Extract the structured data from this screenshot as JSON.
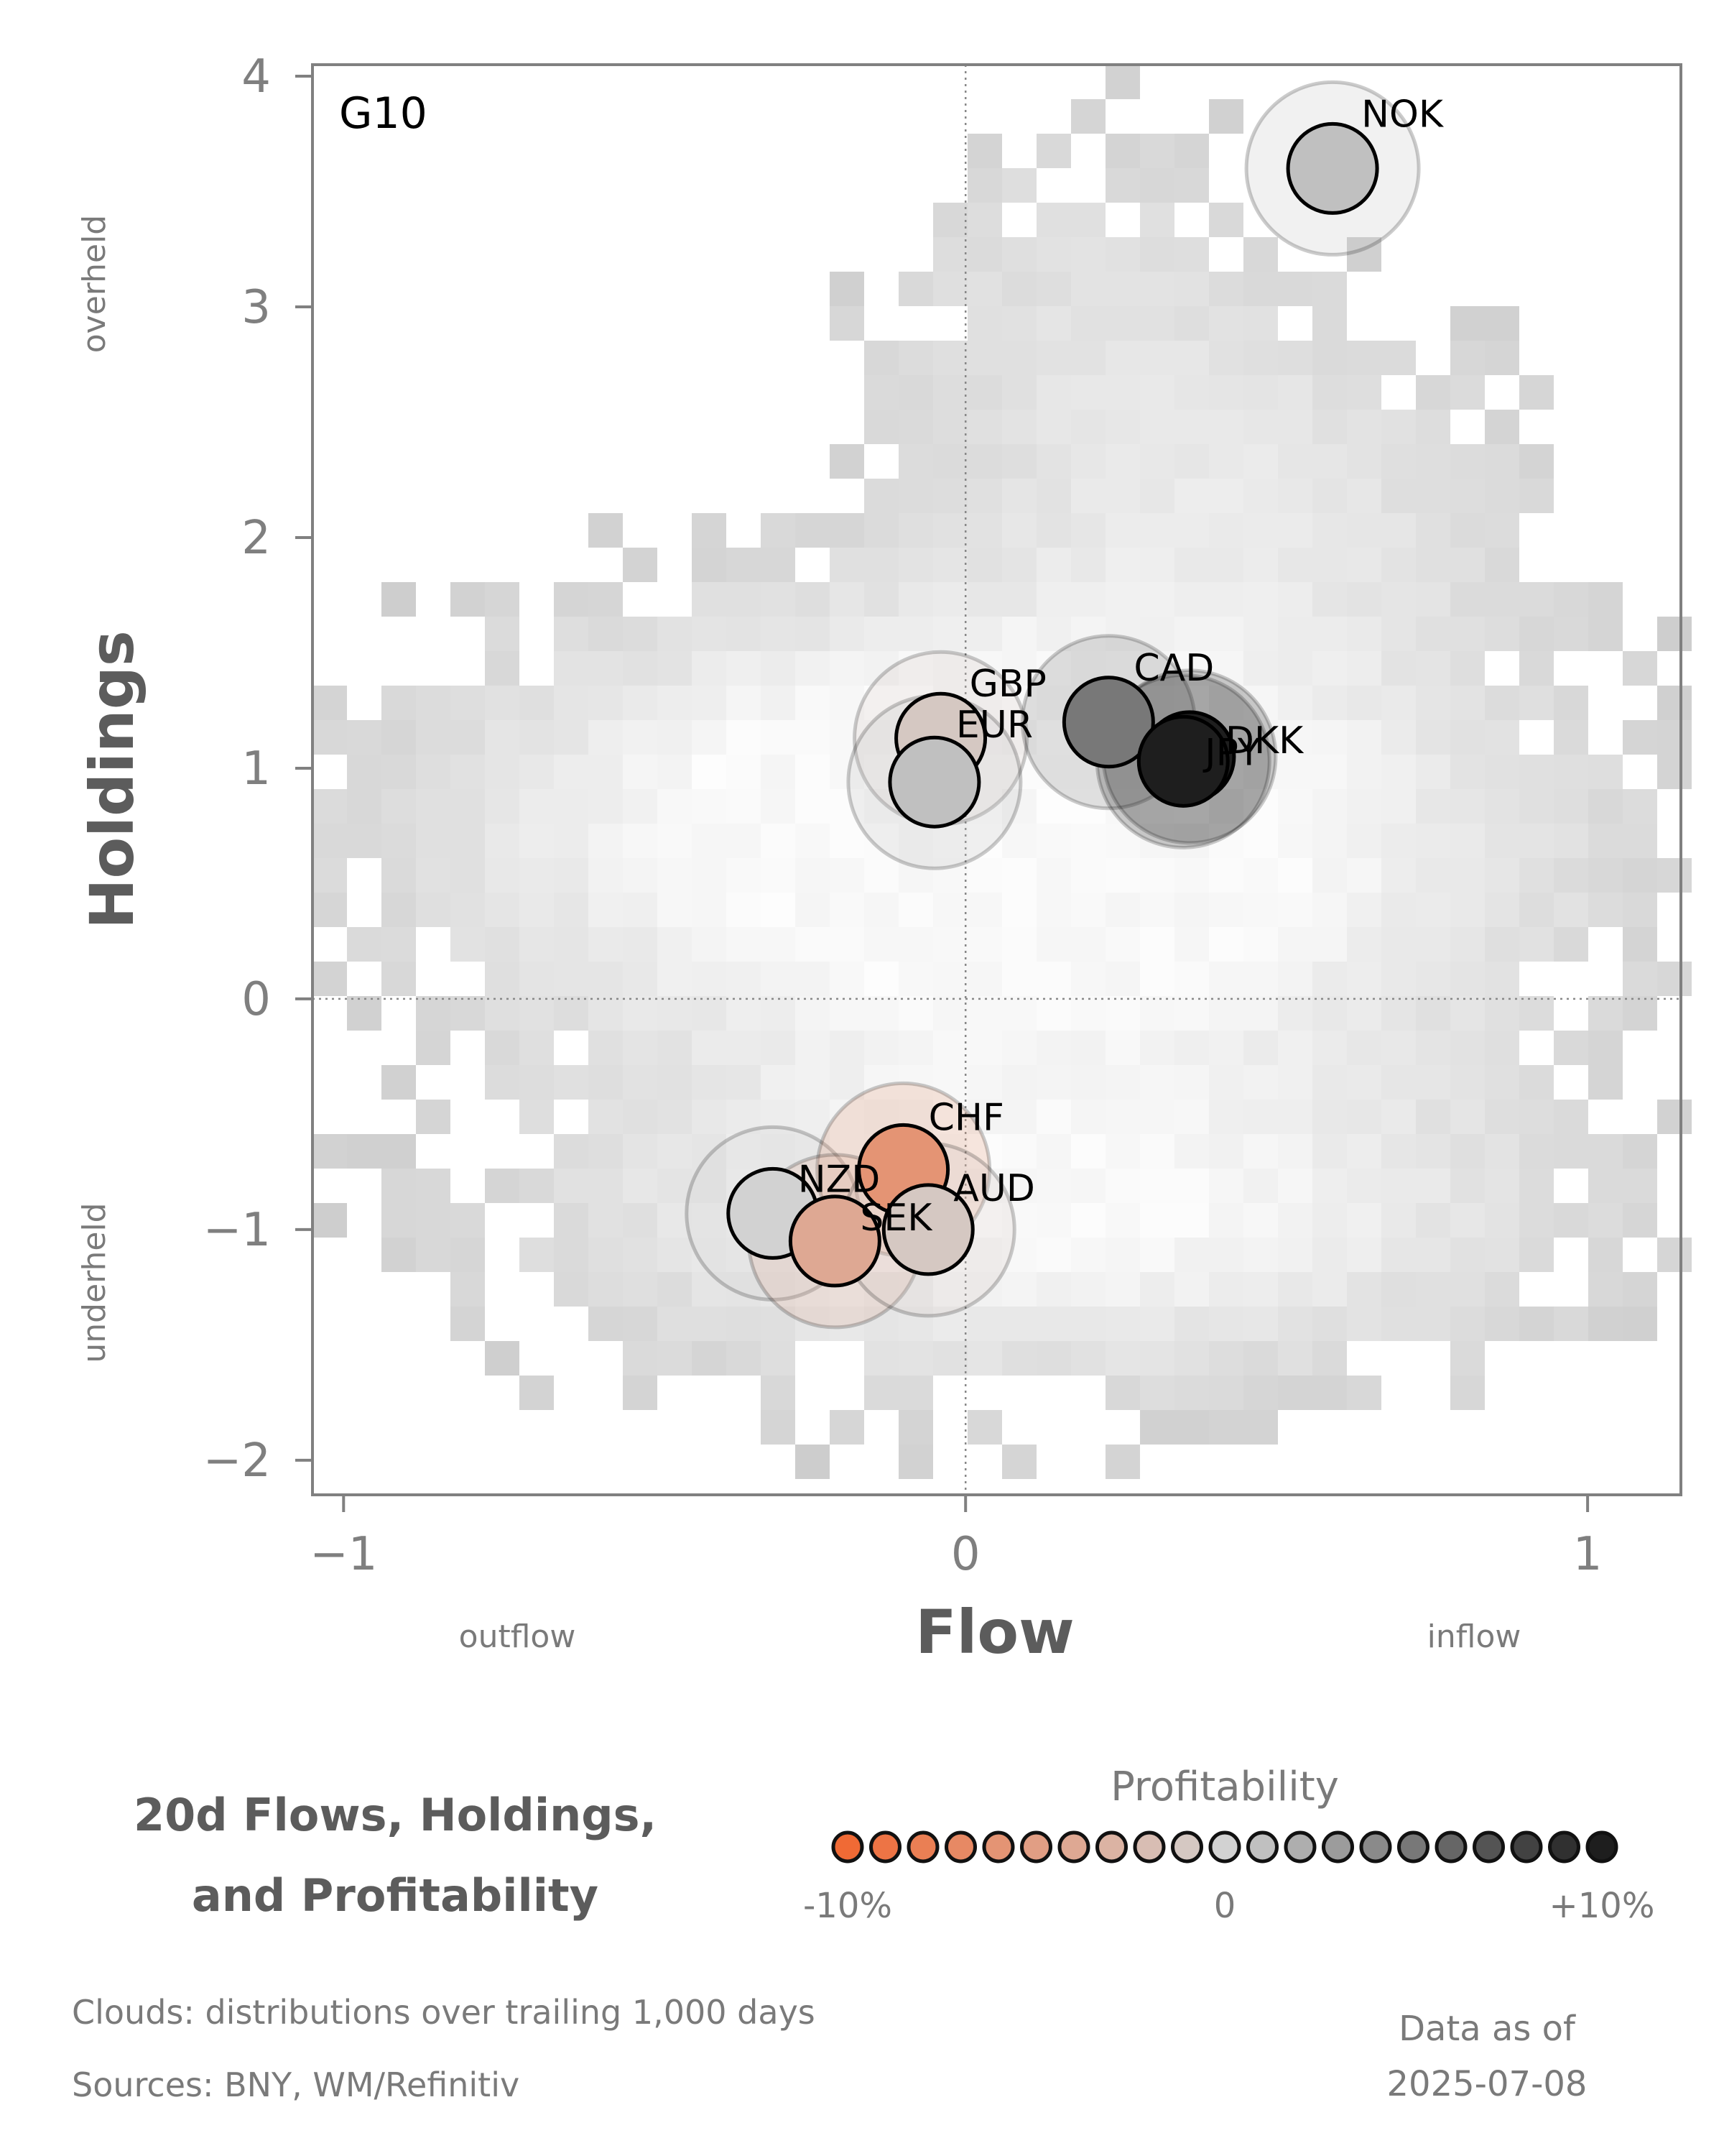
{
  "chart_data": {
    "type": "scatter",
    "title": "20d Flows, Holdings,\nand Profitability",
    "title_lines": [
      "20d Flows, Holdings,",
      "and Profitability"
    ],
    "panel_label": "G10",
    "xlabel": "Flow",
    "ylabel": "Holdings",
    "x_side_labels": {
      "left": "outflow",
      "right": "inflow"
    },
    "y_side_labels": {
      "top": "overheld",
      "bottom": "underheld"
    },
    "xlim": [
      -1.05,
      1.15
    ],
    "ylim": [
      -2.15,
      4.05
    ],
    "xticks": [
      -1,
      0,
      1
    ],
    "xtick_labels": [
      "−1",
      "0",
      "1"
    ],
    "yticks": [
      -2,
      -1,
      0,
      1,
      2,
      3,
      4
    ],
    "ytick_labels": [
      "−2",
      "−1",
      "0",
      "1",
      "2",
      "3",
      "4"
    ],
    "grid": false,
    "reference_lines": {
      "x": 0,
      "y": 0
    },
    "points": [
      {
        "label": "NOK",
        "flow": 0.59,
        "holdings": 3.6,
        "profitability": 0.01
      },
      {
        "label": "GBP",
        "flow": -0.04,
        "holdings": 1.13,
        "profitability": -0.01
      },
      {
        "label": "EUR",
        "flow": -0.05,
        "holdings": 0.94,
        "profitability": 0.01
      },
      {
        "label": "CAD",
        "flow": 0.23,
        "holdings": 1.2,
        "profitability": 0.05
      },
      {
        "label": "DKK",
        "flow": 0.36,
        "holdings": 1.05,
        "profitability": 0.1
      },
      {
        "label": "JPY",
        "flow": 0.35,
        "holdings": 1.03,
        "profitability": 0.1
      },
      {
        "label": "NZD",
        "flow": -0.31,
        "holdings": -0.93,
        "profitability": 0.0
      },
      {
        "label": "CHF",
        "flow": -0.1,
        "holdings": -0.74,
        "profitability": -0.06
      },
      {
        "label": "SEK",
        "flow": -0.21,
        "holdings": -1.05,
        "profitability": -0.04
      },
      {
        "label": "AUD",
        "flow": -0.06,
        "holdings": -1.0,
        "profitability": -0.01
      }
    ],
    "legend": {
      "title": "Profitability",
      "position": "bottom-right",
      "min_label": "-10%",
      "mid_label": "0",
      "max_label": "+10%"
    },
    "clouds_note": "Clouds:  distributions over trailing 1,000 days",
    "sources_note": "Sources:  BNY, WM/Refinitiv",
    "asof_line1": "Data as of",
    "asof_line2": "2025-07-08"
  },
  "colors": {
    "negative": "#f06a35",
    "neutral": "#d2d2d2",
    "positive": "#1e1e1e",
    "axis": "#808080",
    "text": "#5c5c5c"
  }
}
